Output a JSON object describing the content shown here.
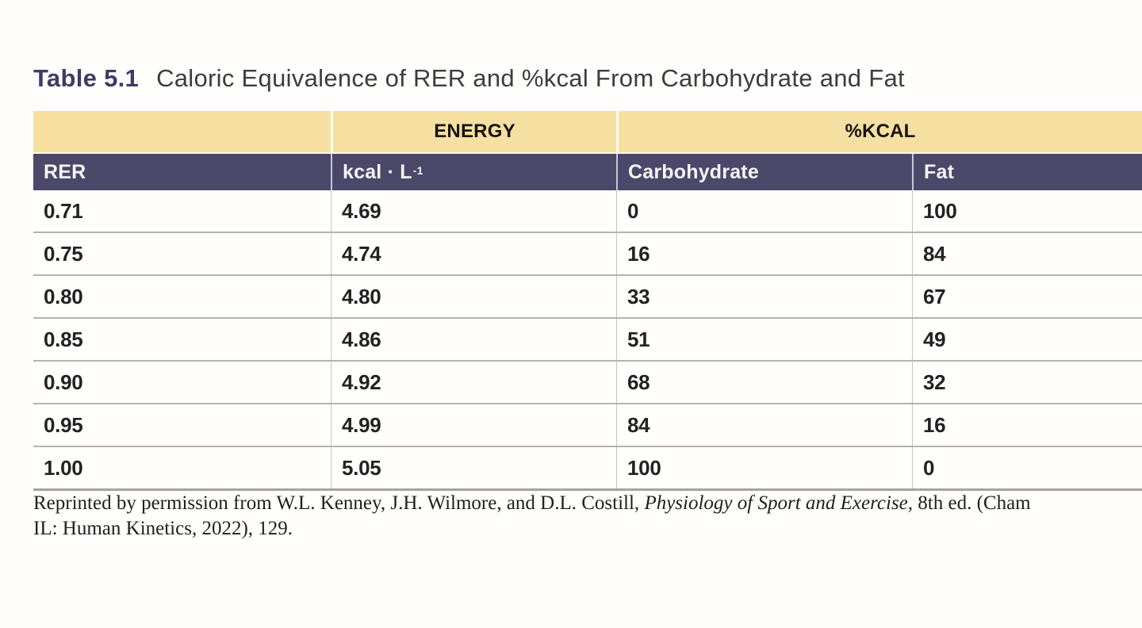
{
  "title": {
    "label": "Table 5.1",
    "text": "Caloric Equivalence of RER and %kcal From Carbohydrate and Fat"
  },
  "table": {
    "group_headers": {
      "blank": "",
      "energy": "ENERGY",
      "pct_kcal": "%KCAL"
    },
    "columns": {
      "rer": "RER",
      "kcal_per_liter_base": "kcal · L",
      "kcal_per_liter_sup": "-1",
      "carbohydrate": "Carbohydrate",
      "fat": "Fat"
    },
    "rows": [
      {
        "rer": "0.71",
        "kcal_per_liter": "4.69",
        "carbohydrate": "0",
        "fat": "100"
      },
      {
        "rer": "0.75",
        "kcal_per_liter": "4.74",
        "carbohydrate": "16",
        "fat": "84"
      },
      {
        "rer": "0.80",
        "kcal_per_liter": "4.80",
        "carbohydrate": "33",
        "fat": "67"
      },
      {
        "rer": "0.85",
        "kcal_per_liter": "4.86",
        "carbohydrate": "51",
        "fat": "49"
      },
      {
        "rer": "0.90",
        "kcal_per_liter": "4.92",
        "carbohydrate": "68",
        "fat": "32"
      },
      {
        "rer": "0.95",
        "kcal_per_liter": "4.99",
        "carbohydrate": "84",
        "fat": "16"
      },
      {
        "rer": "1.00",
        "kcal_per_liter": "5.05",
        "carbohydrate": "100",
        "fat": "0"
      }
    ]
  },
  "footer": {
    "line1_prefix": "Reprinted by permission from W.L. Kenney, J.H. Wilmore, and D.L. Costill, ",
    "line1_book_title": "Physiology of Sport and Exercise,",
    "line1_suffix": " 8th ed. (Cham",
    "line2": "IL: Human Kinetics, 2022), 129."
  },
  "colors": {
    "group_header_background": "#f6e0a1",
    "column_header_background": "#4c4869",
    "title_label_navy": "#3e3c66",
    "row_separator_gray": "#b3b3b3"
  },
  "chart_data": {
    "type": "table",
    "title": "Table 5.1 Caloric Equivalence of RER and %kcal From Carbohydrate and Fat",
    "column_groups": [
      "",
      "ENERGY",
      "%KCAL"
    ],
    "columns": [
      "RER",
      "kcal · L⁻¹",
      "Carbohydrate",
      "Fat"
    ],
    "rows": [
      [
        0.71,
        4.69,
        0,
        100
      ],
      [
        0.75,
        4.74,
        16,
        84
      ],
      [
        0.8,
        4.8,
        33,
        67
      ],
      [
        0.85,
        4.86,
        51,
        49
      ],
      [
        0.9,
        4.92,
        68,
        32
      ],
      [
        0.95,
        4.99,
        84,
        16
      ],
      [
        1.0,
        5.05,
        100,
        0
      ]
    ]
  }
}
